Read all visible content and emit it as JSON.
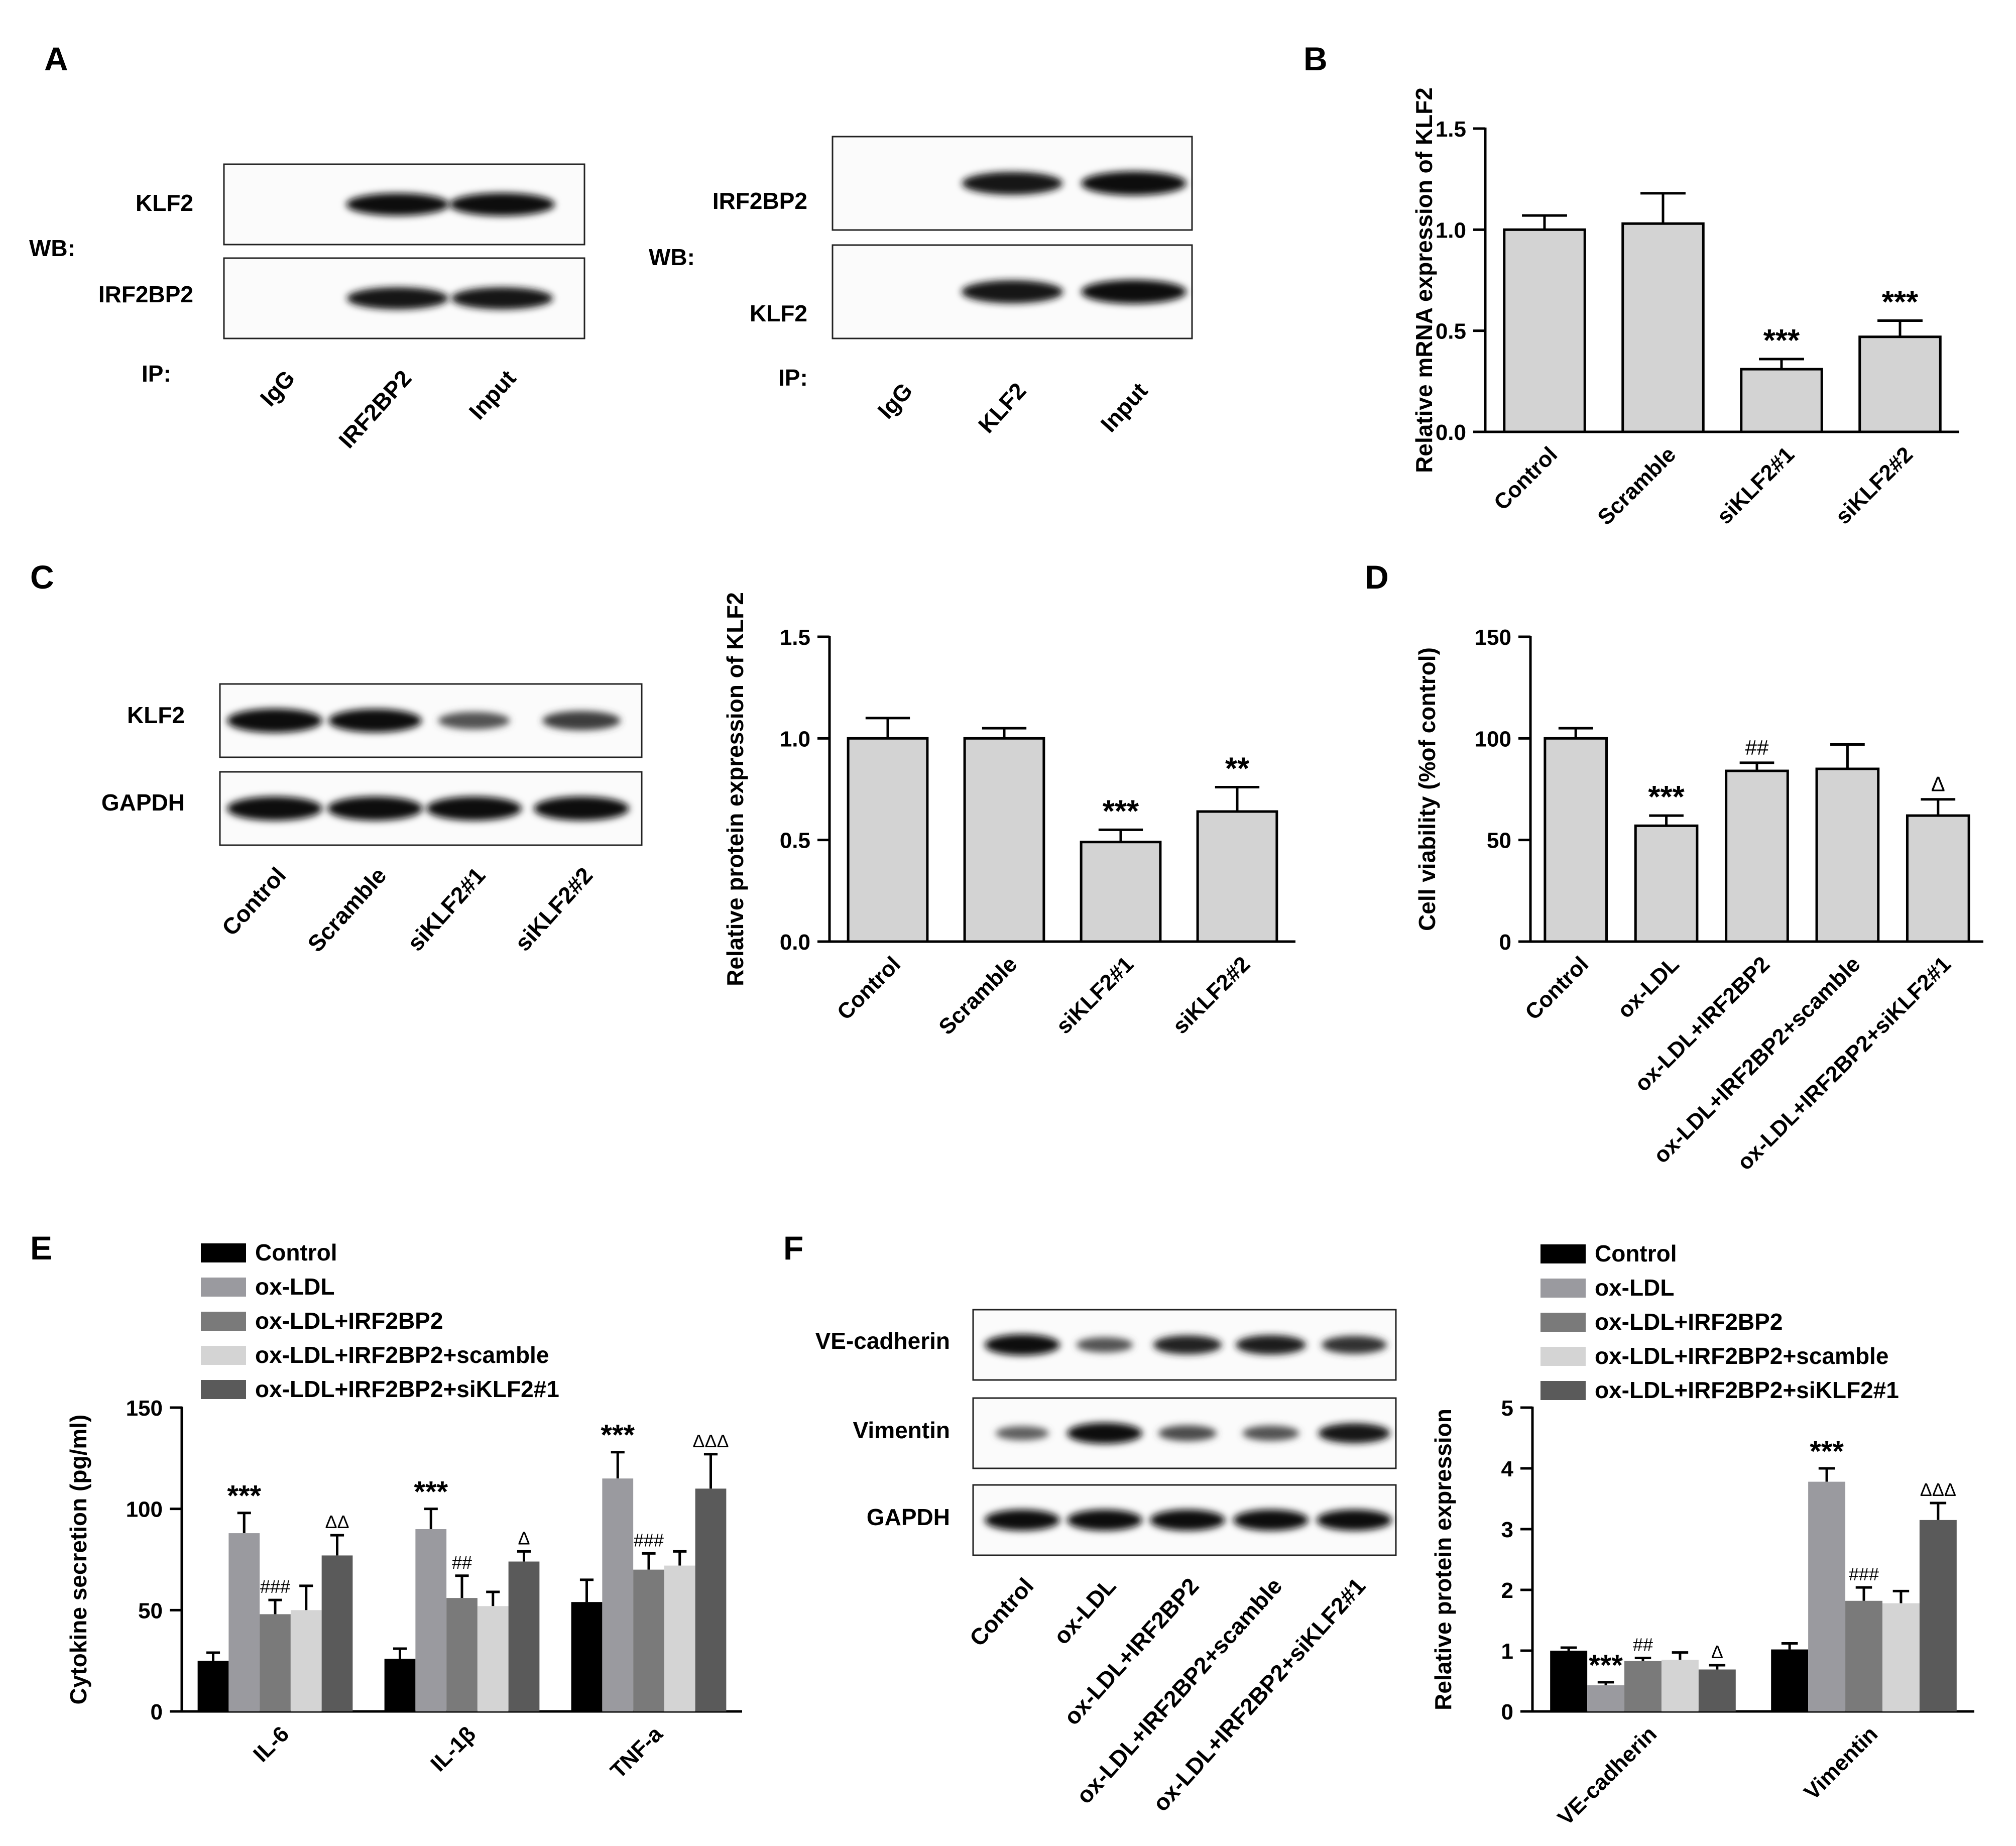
{
  "panel_letters": [
    "A",
    "B",
    "C",
    "D",
    "E",
    "F"
  ],
  "blots": {
    "A1": {
      "wb_label": "WB:",
      "ip_label": "IP:",
      "rows": [
        "KLF2",
        "IRF2BP2"
      ],
      "lanes": [
        "IgG",
        "IRF2BP2",
        "Input"
      ],
      "intensities": [
        [
          0,
          0.95,
          1.0
        ],
        [
          0,
          0.92,
          0.92
        ]
      ]
    },
    "A2": {
      "wb_label": "WB:",
      "ip_label": "IP:",
      "rows": [
        "IRF2BP2",
        "KLF2"
      ],
      "lanes": [
        "IgG",
        "KLF2",
        "Input"
      ],
      "intensities": [
        [
          0,
          0.9,
          1.0
        ],
        [
          0,
          0.92,
          1.0
        ]
      ]
    },
    "C": {
      "rows": [
        "KLF2",
        "GAPDH"
      ],
      "lanes": [
        "Control",
        "Scramble",
        "siKLF2#1",
        "siKLF2#2"
      ],
      "intensities": [
        [
          1.0,
          0.95,
          0.45,
          0.6
        ],
        [
          1.0,
          1.0,
          1.0,
          1.0
        ]
      ]
    },
    "F": {
      "rows": [
        "VE-cadherin",
        "Vimentin",
        "GAPDH"
      ],
      "lanes": [
        "Control",
        "ox-LDL",
        "ox-LDL+IRF2BP2",
        "ox-LDL+IRF2BP2+scamble",
        "ox-LDL+IRF2BP2+siKLF2#1"
      ],
      "intensities": [
        [
          1.0,
          0.45,
          0.8,
          0.85,
          0.7
        ],
        [
          0.35,
          1.0,
          0.5,
          0.45,
          0.9
        ],
        [
          1.0,
          1.0,
          1.0,
          1.0,
          1.0
        ]
      ]
    }
  },
  "chart_data": [
    {
      "id": "B",
      "type": "bar",
      "ylabel": "Relative mRNA expression of KLF2",
      "categories": [
        "Control",
        "Scramble",
        "siKLF2#1",
        "siKLF2#2"
      ],
      "values": [
        1.0,
        1.03,
        0.31,
        0.47
      ],
      "errors": [
        0.07,
        0.15,
        0.05,
        0.08
      ],
      "annotations": [
        "",
        "",
        "***",
        "***"
      ],
      "ylim": [
        0,
        1.5
      ],
      "yticks": [
        "0.0",
        "0.5",
        "1.0",
        "1.5"
      ]
    },
    {
      "id": "C",
      "type": "bar",
      "ylabel": "Relative protein expression of KLF2",
      "categories": [
        "Control",
        "Scramble",
        "siKLF2#1",
        "siKLF2#2"
      ],
      "values": [
        1.0,
        1.0,
        0.49,
        0.64
      ],
      "errors": [
        0.1,
        0.05,
        0.06,
        0.12
      ],
      "annotations": [
        "",
        "",
        "***",
        "**"
      ],
      "ylim": [
        0,
        1.5
      ],
      "yticks": [
        "0.0",
        "0.5",
        "1.0",
        "1.5"
      ]
    },
    {
      "id": "D",
      "type": "bar",
      "ylabel": "Cell viability (%of control)",
      "categories": [
        "Control",
        "ox-LDL",
        "ox-LDL+IRF2BP2",
        "ox-LDL+IRF2BP2+scamble",
        "ox-LDL+IRF2BP2+siKLF2#1"
      ],
      "values": [
        100,
        57,
        84,
        85,
        62
      ],
      "errors": [
        5,
        5,
        4,
        12,
        8
      ],
      "annotations": [
        "",
        "***",
        "##",
        "",
        "Δ"
      ],
      "ylim": [
        0,
        150
      ],
      "yticks": [
        "0",
        "50",
        "100",
        "150"
      ]
    },
    {
      "id": "E",
      "type": "bar",
      "ylabel": "Cytokine secretion (pg/ml)",
      "categories": [
        "IL-6",
        "IL-1β",
        "TNF-a"
      ],
      "series": [
        {
          "name": "Control",
          "color": "#000000",
          "values": [
            25,
            26,
            54
          ],
          "errors": [
            4,
            5,
            11
          ]
        },
        {
          "name": "ox-LDL",
          "color": "#9a9a9f",
          "values": [
            88,
            90,
            115
          ],
          "errors": [
            10,
            10,
            13
          ]
        },
        {
          "name": "ox-LDL+IRF2BP2",
          "color": "#7a7a7a",
          "values": [
            48,
            56,
            70
          ],
          "errors": [
            7,
            11,
            8
          ]
        },
        {
          "name": "ox-LDL+IRF2BP2+scamble",
          "color": "#d4d4d4",
          "values": [
            50,
            52,
            72
          ],
          "errors": [
            12,
            7,
            7
          ]
        },
        {
          "name": "ox-LDL+IRF2BP2+siKLF2#1",
          "color": "#5a5a5a",
          "values": [
            77,
            74,
            110
          ],
          "errors": [
            10,
            5,
            17
          ]
        }
      ],
      "annotations": [
        [
          "",
          "***",
          "###",
          "",
          "ΔΔ"
        ],
        [
          "",
          "***",
          "##",
          "",
          "Δ"
        ],
        [
          "",
          "***",
          "###",
          "",
          "ΔΔΔ"
        ]
      ],
      "ylim": [
        0,
        150
      ],
      "yticks": [
        "0",
        "50",
        "100",
        "150"
      ],
      "legend_position": "top-left"
    },
    {
      "id": "F",
      "type": "bar",
      "ylabel": "Relative protein expression",
      "categories": [
        "VE-cadherin",
        "Vimentin"
      ],
      "series": [
        {
          "name": "Control",
          "color": "#000000",
          "values": [
            1.0,
            1.02
          ],
          "errors": [
            0.05,
            0.1
          ]
        },
        {
          "name": "ox-LDL",
          "color": "#9a9a9f",
          "values": [
            0.43,
            3.78
          ],
          "errors": [
            0.05,
            0.22
          ]
        },
        {
          "name": "ox-LDL+IRF2BP2",
          "color": "#7a7a7a",
          "values": [
            0.83,
            1.82
          ],
          "errors": [
            0.05,
            0.22
          ]
        },
        {
          "name": "ox-LDL+IRF2BP2+scamble",
          "color": "#d4d4d4",
          "values": [
            0.85,
            1.78
          ],
          "errors": [
            0.12,
            0.2
          ]
        },
        {
          "name": "ox-LDL+IRF2BP2+siKLF2#1",
          "color": "#5a5a5a",
          "values": [
            0.69,
            3.15
          ],
          "errors": [
            0.07,
            0.28
          ]
        }
      ],
      "annotations": [
        [
          "",
          "***",
          "##",
          "",
          "Δ"
        ],
        [
          "",
          "***",
          "###",
          "",
          "ΔΔΔ"
        ]
      ],
      "ylim": [
        0,
        5
      ],
      "yticks": [
        "0",
        "1",
        "2",
        "3",
        "4",
        "5"
      ],
      "legend_position": "top-right"
    }
  ]
}
